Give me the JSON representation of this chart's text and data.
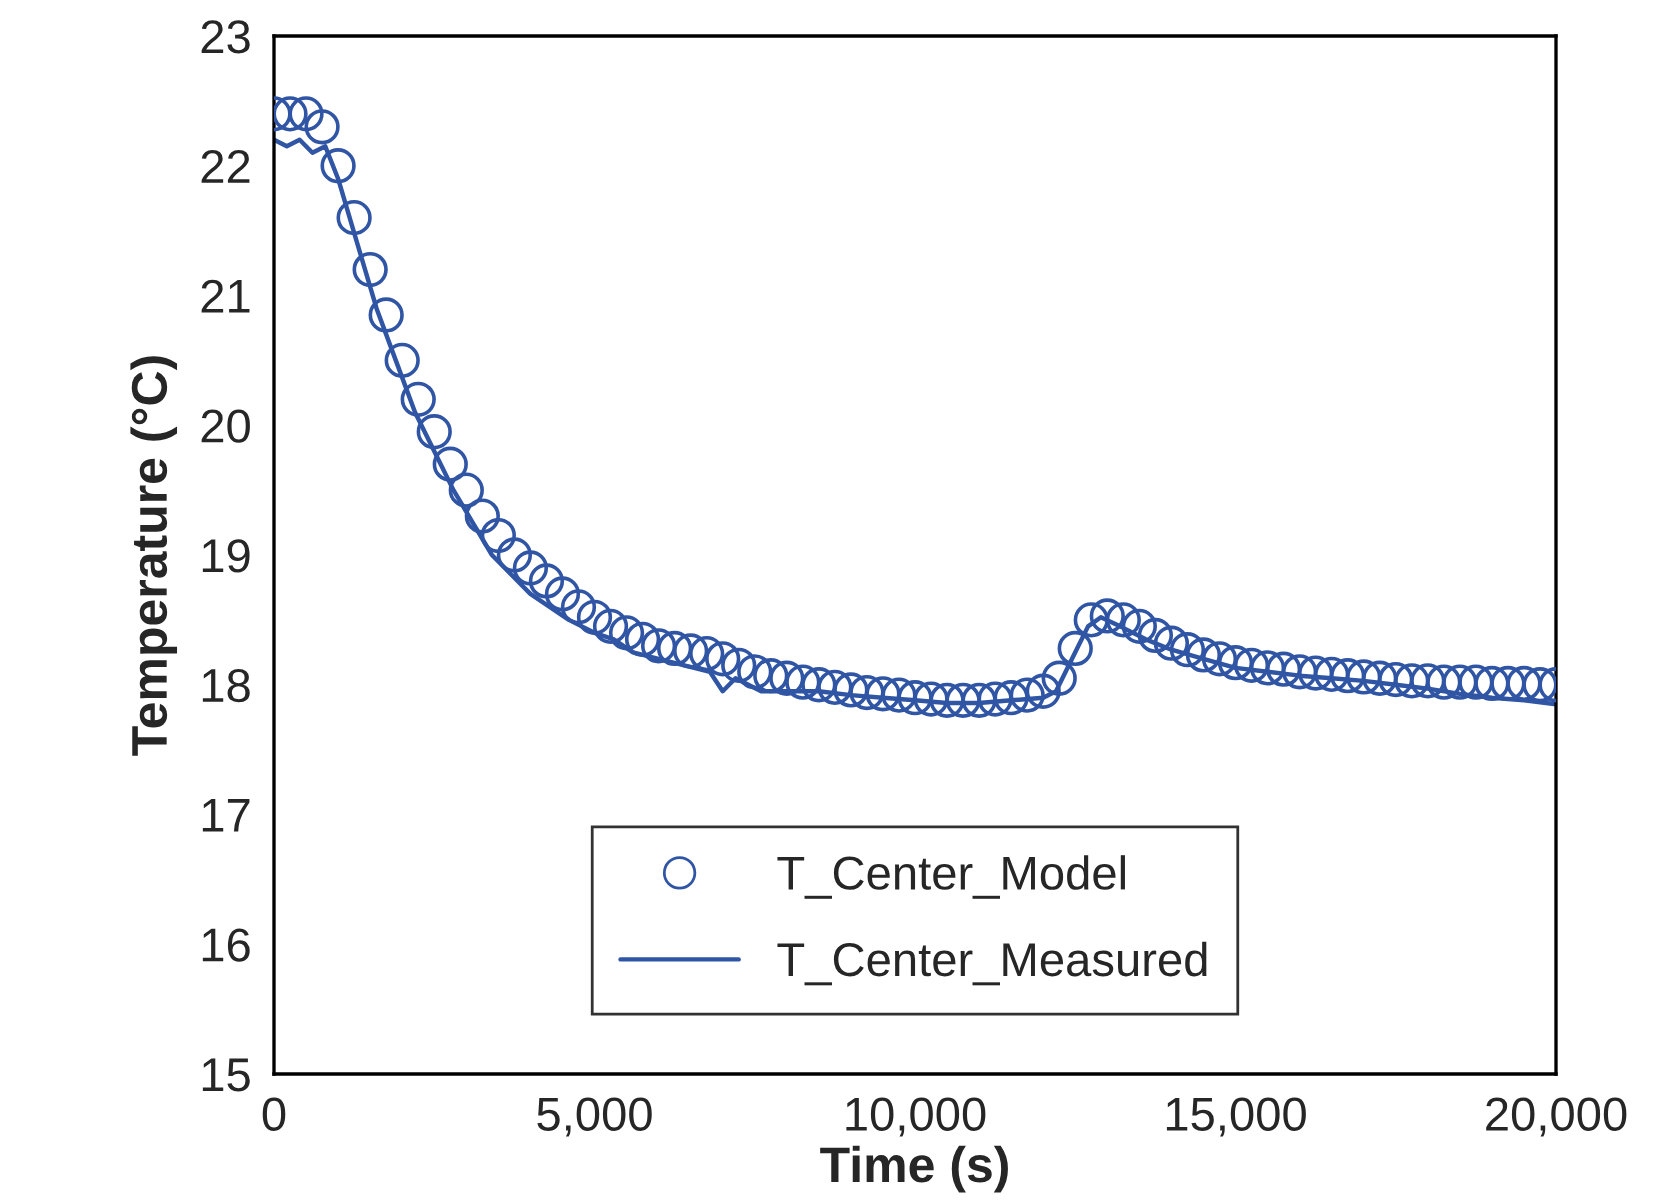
{
  "chart_data": {
    "type": "line",
    "xlabel": "Time (s)",
    "ylabel": "Temperature (°C)",
    "xlim": [
      0,
      20000
    ],
    "ylim": [
      15,
      23
    ],
    "xticks": [
      0,
      {
        "value": 5000,
        "label": "5,000"
      },
      {
        "value": 10000,
        "label": "10,000"
      },
      {
        "value": 15000,
        "label": "15,000"
      },
      {
        "value": 20000,
        "label": "20,000"
      }
    ],
    "yticks": [
      15,
      16,
      17,
      18,
      19,
      20,
      21,
      22,
      23
    ],
    "grid": false,
    "legend": "bottom",
    "series": [
      {
        "name": "T_Center_Model",
        "type": "scatter",
        "marker": "circle",
        "color": "#2f55a4",
        "x": [
          0,
          250,
          500,
          750,
          1000,
          1250,
          1500,
          1750,
          2000,
          2250,
          2500,
          2750,
          3000,
          3250,
          3500,
          3750,
          4000,
          4250,
          4500,
          4750,
          5000,
          5250,
          5500,
          5750,
          6000,
          6250,
          6500,
          6750,
          7000,
          7250,
          7500,
          7750,
          8000,
          8250,
          8500,
          8750,
          9000,
          9250,
          9500,
          9750,
          10000,
          10250,
          10500,
          10750,
          11000,
          11250,
          11500,
          11750,
          12000,
          12250,
          12500,
          12750,
          13000,
          13250,
          13500,
          13750,
          14000,
          14250,
          14500,
          14750,
          15000,
          15250,
          15500,
          15750,
          16000,
          16250,
          16500,
          16750,
          17000,
          17250,
          17500,
          17750,
          18000,
          18250,
          18500,
          18750,
          19000,
          19250,
          19500,
          19750,
          20000
        ],
        "values": [
          22.4,
          22.4,
          22.4,
          22.3,
          22.0,
          21.6,
          21.2,
          20.85,
          20.5,
          20.2,
          19.95,
          19.7,
          19.5,
          19.3,
          19.15,
          19.0,
          18.9,
          18.8,
          18.7,
          18.6,
          18.52,
          18.45,
          18.4,
          18.35,
          18.3,
          18.28,
          18.26,
          18.24,
          18.2,
          18.15,
          18.1,
          18.07,
          18.05,
          18.02,
          18.0,
          17.98,
          17.96,
          17.94,
          17.93,
          17.92,
          17.9,
          17.89,
          17.88,
          17.88,
          17.88,
          17.89,
          17.9,
          17.92,
          17.95,
          18.05,
          18.28,
          18.5,
          18.53,
          18.5,
          18.45,
          18.38,
          18.32,
          18.27,
          18.23,
          18.2,
          18.17,
          18.15,
          18.13,
          18.12,
          18.1,
          18.09,
          18.08,
          18.07,
          18.06,
          18.05,
          18.04,
          18.03,
          18.03,
          18.02,
          18.02,
          18.02,
          18.01,
          18.01,
          18.01,
          18.0,
          18.0
        ]
      },
      {
        "name": "T_Center_Measured",
        "line_style": "solid",
        "color": "#2f55a4",
        "x": [
          0,
          200,
          400,
          600,
          800,
          1000,
          1300,
          1600,
          1900,
          2200,
          2500,
          2800,
          3100,
          3400,
          3700,
          4000,
          4300,
          4600,
          5000,
          5300,
          5600,
          6000,
          6400,
          6800,
          7000,
          7200,
          7600,
          8000,
          8500,
          9000,
          9500,
          10000,
          10500,
          11000,
          11500,
          12000,
          12200,
          12500,
          12700,
          12900,
          13200,
          13600,
          14000,
          14500,
          15000,
          15500,
          16000,
          16500,
          17000,
          17500,
          18000,
          18500,
          19000,
          19500,
          20000
        ],
        "values": [
          22.2,
          22.15,
          22.2,
          22.1,
          22.15,
          21.9,
          21.4,
          20.9,
          20.5,
          20.1,
          19.8,
          19.5,
          19.25,
          19.0,
          18.85,
          18.7,
          18.6,
          18.5,
          18.4,
          18.35,
          18.25,
          18.2,
          18.15,
          18.1,
          17.95,
          18.05,
          17.95,
          17.95,
          17.95,
          17.92,
          17.9,
          17.88,
          17.86,
          17.86,
          17.88,
          17.9,
          17.95,
          18.25,
          18.45,
          18.52,
          18.45,
          18.35,
          18.27,
          18.2,
          18.13,
          18.1,
          18.07,
          18.05,
          18.03,
          18.0,
          17.97,
          17.93,
          17.9,
          17.88,
          17.85
        ]
      }
    ]
  }
}
